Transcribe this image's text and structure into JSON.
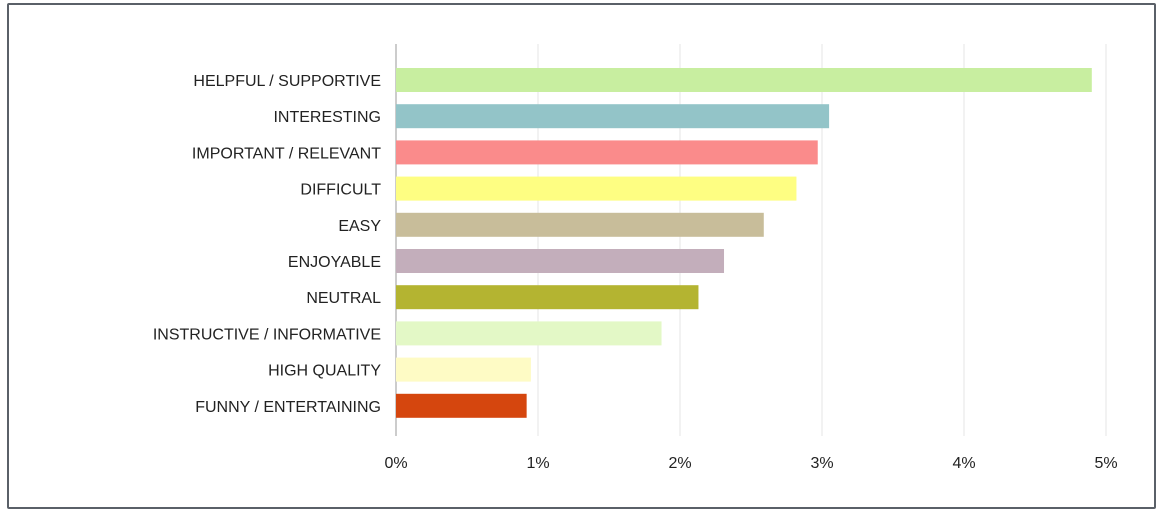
{
  "chart_data": {
    "type": "bar",
    "orientation": "horizontal",
    "categories": [
      "HELPFUL / SUPPORTIVE",
      "INTERESTING",
      "IMPORTANT / RELEVANT",
      "DIFFICULT",
      "EASY",
      "ENJOYABLE",
      "NEUTRAL",
      "INSTRUCTIVE / INFORMATIVE",
      "HIGH QUALITY",
      "FUNNY / ENTERTAINING"
    ],
    "values": [
      4.9,
      3.05,
      2.97,
      2.82,
      2.59,
      2.31,
      2.13,
      1.87,
      0.95,
      0.92
    ],
    "colors": [
      "#c8eea0",
      "#93c4c8",
      "#fa8b8b",
      "#fefe82",
      "#c8bd9a",
      "#c3aebb",
      "#b4b431",
      "#e3f8c6",
      "#fefbc5",
      "#d5460e"
    ],
    "unit": "%",
    "xlim": [
      0,
      5
    ],
    "xticks": [
      "0%",
      "1%",
      "2%",
      "3%",
      "4%",
      "5%"
    ],
    "grid": true,
    "title": "",
    "xlabel": "",
    "ylabel": ""
  }
}
